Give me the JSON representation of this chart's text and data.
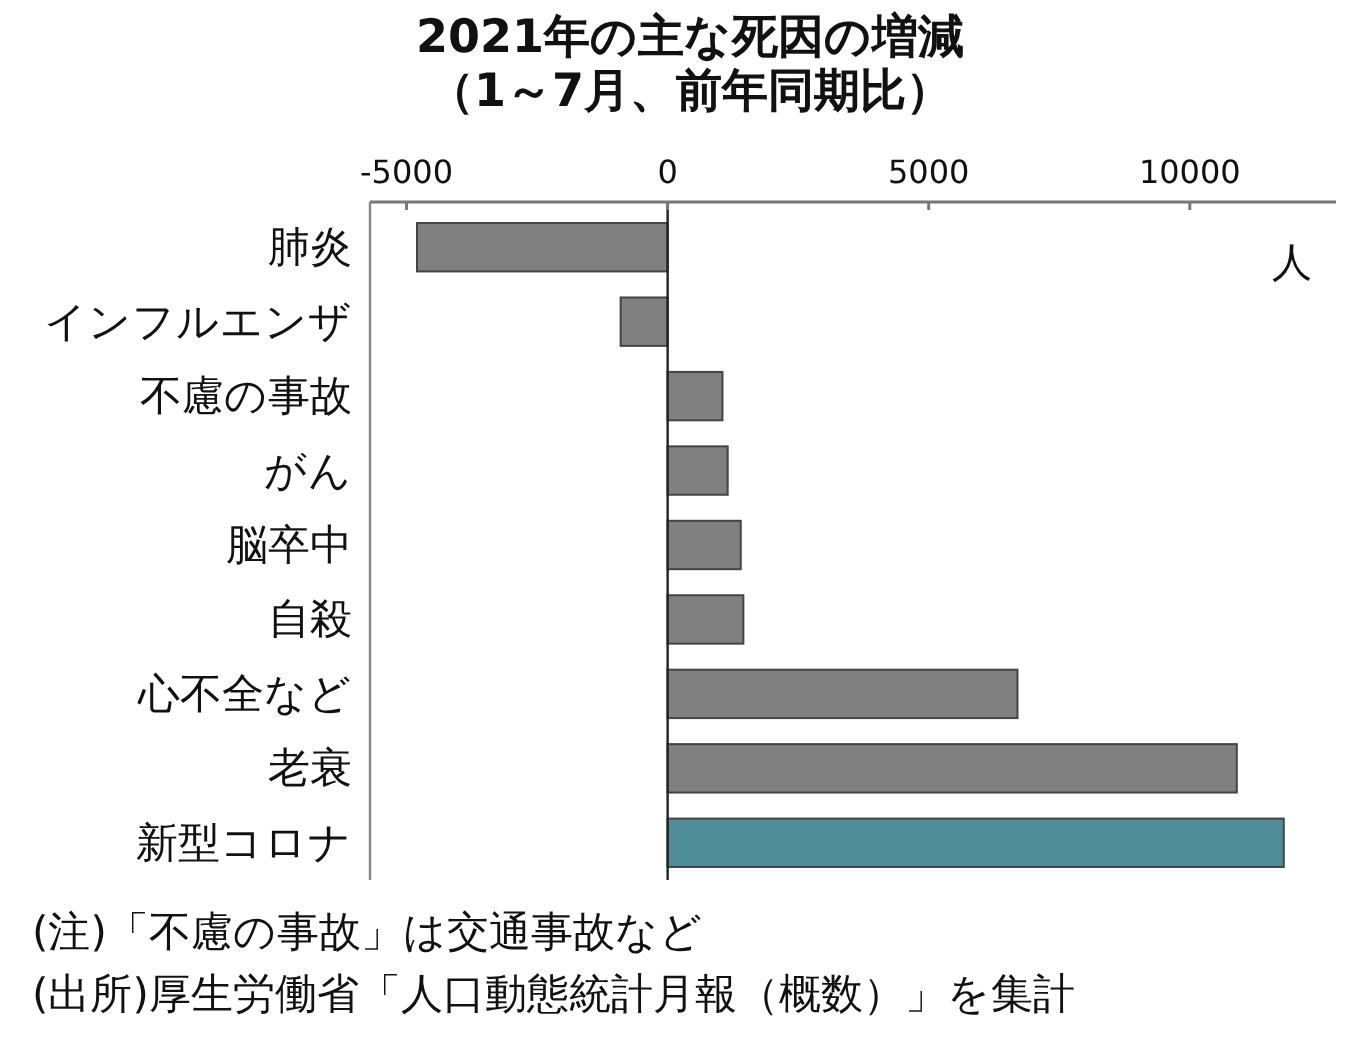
{
  "chart_data": {
    "type": "bar",
    "orientation": "horizontal",
    "title": "2021年の主な死因の増減",
    "subtitle": "（1～7月、前年同期比）",
    "categories": [
      "肺炎",
      "インフルエンザ",
      "不慮の事故",
      "がん",
      "脳卒中",
      "自殺",
      "心不全など",
      "老衰",
      "新型コロナ"
    ],
    "values": [
      -4800,
      -900,
      1050,
      1150,
      1400,
      1450,
      6700,
      10900,
      11800
    ],
    "colors": [
      "#808080",
      "#808080",
      "#808080",
      "#808080",
      "#808080",
      "#808080",
      "#808080",
      "#808080",
      "#4f8e98"
    ],
    "xlabel": "人",
    "xlim": [
      -5700,
      12800
    ],
    "xticks": [
      -5000,
      0,
      5000,
      10000
    ],
    "annotations": [
      "(注)「不慮の事故」は交通事故など",
      "(出所)厚生労働省「人口動態統計月報（概数）」を集計"
    ]
  }
}
